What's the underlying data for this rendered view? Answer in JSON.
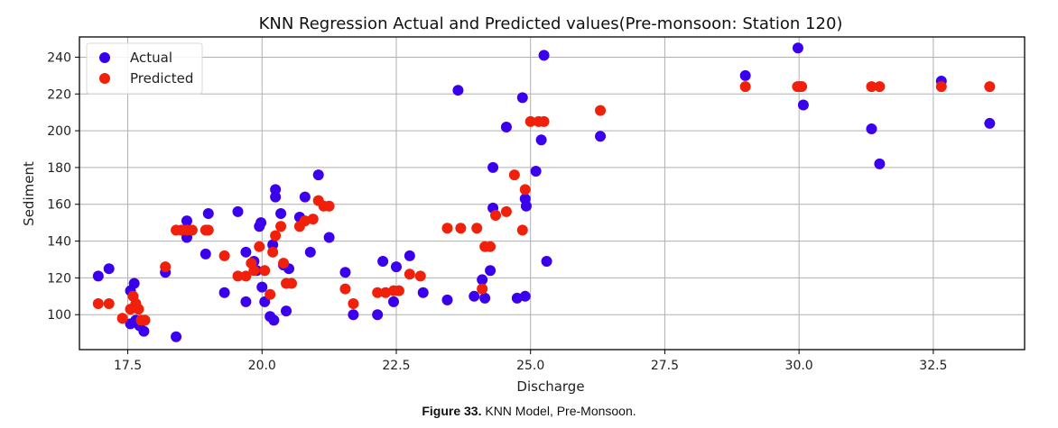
{
  "caption": {
    "label": "Figure 33.",
    "text": "KNN Model, Pre-Monsoon."
  },
  "chart_data": {
    "type": "scatter",
    "title": "KNN Regression Actual and Predicted values(Pre-monsoon: Station 120)",
    "xlabel": "Discharge",
    "ylabel": "Sediment",
    "xlim": [
      16.6,
      34.2
    ],
    "ylim": [
      81,
      251
    ],
    "xticks": [
      17.5,
      20.0,
      22.5,
      25.0,
      27.5,
      30.0,
      32.5
    ],
    "xtick_labels": [
      "17.5",
      "20.0",
      "22.5",
      "25.0",
      "27.5",
      "30.0",
      "32.5"
    ],
    "yticks": [
      100,
      120,
      140,
      160,
      180,
      200,
      220,
      240
    ],
    "ytick_labels": [
      "100",
      "120",
      "140",
      "160",
      "180",
      "200",
      "220",
      "240"
    ],
    "grid": true,
    "legend": {
      "position": "top-left",
      "entries": [
        "Actual",
        "Predicted"
      ]
    },
    "colors": {
      "Actual": "#3a00ee",
      "Predicted": "#f0200a"
    },
    "series": [
      {
        "name": "Actual",
        "points": [
          [
            16.95,
            121
          ],
          [
            17.15,
            125
          ],
          [
            17.55,
            113
          ],
          [
            17.62,
            117
          ],
          [
            17.55,
            95
          ],
          [
            17.65,
            97
          ],
          [
            17.72,
            94
          ],
          [
            17.8,
            91
          ],
          [
            18.2,
            123
          ],
          [
            18.4,
            88
          ],
          [
            18.6,
            142
          ],
          [
            18.6,
            151
          ],
          [
            18.95,
            133
          ],
          [
            19.0,
            155
          ],
          [
            19.3,
            112
          ],
          [
            19.55,
            156
          ],
          [
            19.7,
            134
          ],
          [
            19.7,
            107
          ],
          [
            19.85,
            129
          ],
          [
            19.9,
            124
          ],
          [
            19.95,
            148
          ],
          [
            19.98,
            150
          ],
          [
            20.0,
            115
          ],
          [
            20.05,
            107
          ],
          [
            20.15,
            99
          ],
          [
            20.2,
            138
          ],
          [
            20.22,
            97
          ],
          [
            20.25,
            164
          ],
          [
            20.25,
            168
          ],
          [
            20.35,
            155
          ],
          [
            20.4,
            127
          ],
          [
            20.45,
            102
          ],
          [
            20.5,
            125
          ],
          [
            20.7,
            153
          ],
          [
            20.8,
            164
          ],
          [
            20.9,
            134
          ],
          [
            21.05,
            176
          ],
          [
            21.25,
            142
          ],
          [
            21.55,
            123
          ],
          [
            21.7,
            100
          ],
          [
            22.15,
            100
          ],
          [
            22.25,
            129
          ],
          [
            22.45,
            107
          ],
          [
            22.5,
            126
          ],
          [
            22.75,
            132
          ],
          [
            23.0,
            112
          ],
          [
            23.45,
            108
          ],
          [
            23.65,
            222
          ],
          [
            23.95,
            110
          ],
          [
            24.1,
            119
          ],
          [
            24.15,
            109
          ],
          [
            24.25,
            124
          ],
          [
            24.3,
            158
          ],
          [
            24.3,
            180
          ],
          [
            24.55,
            202
          ],
          [
            24.75,
            109
          ],
          [
            24.85,
            218
          ],
          [
            24.9,
            110
          ],
          [
            24.9,
            163
          ],
          [
            24.92,
            159
          ],
          [
            25.1,
            178
          ],
          [
            25.2,
            195
          ],
          [
            25.25,
            241
          ],
          [
            25.3,
            129
          ],
          [
            26.3,
            197
          ],
          [
            29.0,
            230
          ],
          [
            29.98,
            245
          ],
          [
            30.02,
            224
          ],
          [
            30.08,
            214
          ],
          [
            31.35,
            201
          ],
          [
            31.5,
            182
          ],
          [
            32.65,
            227
          ],
          [
            33.55,
            204
          ]
        ]
      },
      {
        "name": "Predicted",
        "points": [
          [
            16.95,
            106
          ],
          [
            17.15,
            106
          ],
          [
            17.4,
            98
          ],
          [
            17.55,
            103
          ],
          [
            17.6,
            110
          ],
          [
            17.65,
            106
          ],
          [
            17.7,
            103
          ],
          [
            17.75,
            97
          ],
          [
            17.82,
            97
          ],
          [
            18.2,
            126
          ],
          [
            18.4,
            146
          ],
          [
            18.5,
            146
          ],
          [
            18.6,
            146
          ],
          [
            18.7,
            146
          ],
          [
            18.95,
            146
          ],
          [
            19.0,
            146
          ],
          [
            19.3,
            132
          ],
          [
            19.55,
            121
          ],
          [
            19.7,
            121
          ],
          [
            19.8,
            128
          ],
          [
            19.85,
            124
          ],
          [
            19.95,
            137
          ],
          [
            20.05,
            124
          ],
          [
            20.15,
            111
          ],
          [
            20.2,
            134
          ],
          [
            20.25,
            143
          ],
          [
            20.35,
            148
          ],
          [
            20.4,
            128
          ],
          [
            20.45,
            117
          ],
          [
            20.55,
            117
          ],
          [
            20.7,
            148
          ],
          [
            20.8,
            151
          ],
          [
            20.95,
            152
          ],
          [
            21.05,
            162
          ],
          [
            21.15,
            159
          ],
          [
            21.25,
            159
          ],
          [
            21.55,
            114
          ],
          [
            21.7,
            106
          ],
          [
            22.15,
            112
          ],
          [
            22.3,
            112
          ],
          [
            22.45,
            113
          ],
          [
            22.55,
            113
          ],
          [
            22.75,
            122
          ],
          [
            22.95,
            121
          ],
          [
            23.45,
            147
          ],
          [
            23.7,
            147
          ],
          [
            24.0,
            147
          ],
          [
            24.1,
            114
          ],
          [
            24.15,
            137
          ],
          [
            24.25,
            137
          ],
          [
            24.35,
            154
          ],
          [
            24.55,
            156
          ],
          [
            24.7,
            176
          ],
          [
            24.85,
            146
          ],
          [
            24.9,
            168
          ],
          [
            25.0,
            205
          ],
          [
            25.15,
            205
          ],
          [
            25.25,
            205
          ],
          [
            26.3,
            211
          ],
          [
            29.0,
            224
          ],
          [
            29.97,
            224
          ],
          [
            30.05,
            224
          ],
          [
            31.35,
            224
          ],
          [
            31.5,
            224
          ],
          [
            32.65,
            224
          ],
          [
            33.55,
            224
          ]
        ]
      }
    ]
  }
}
